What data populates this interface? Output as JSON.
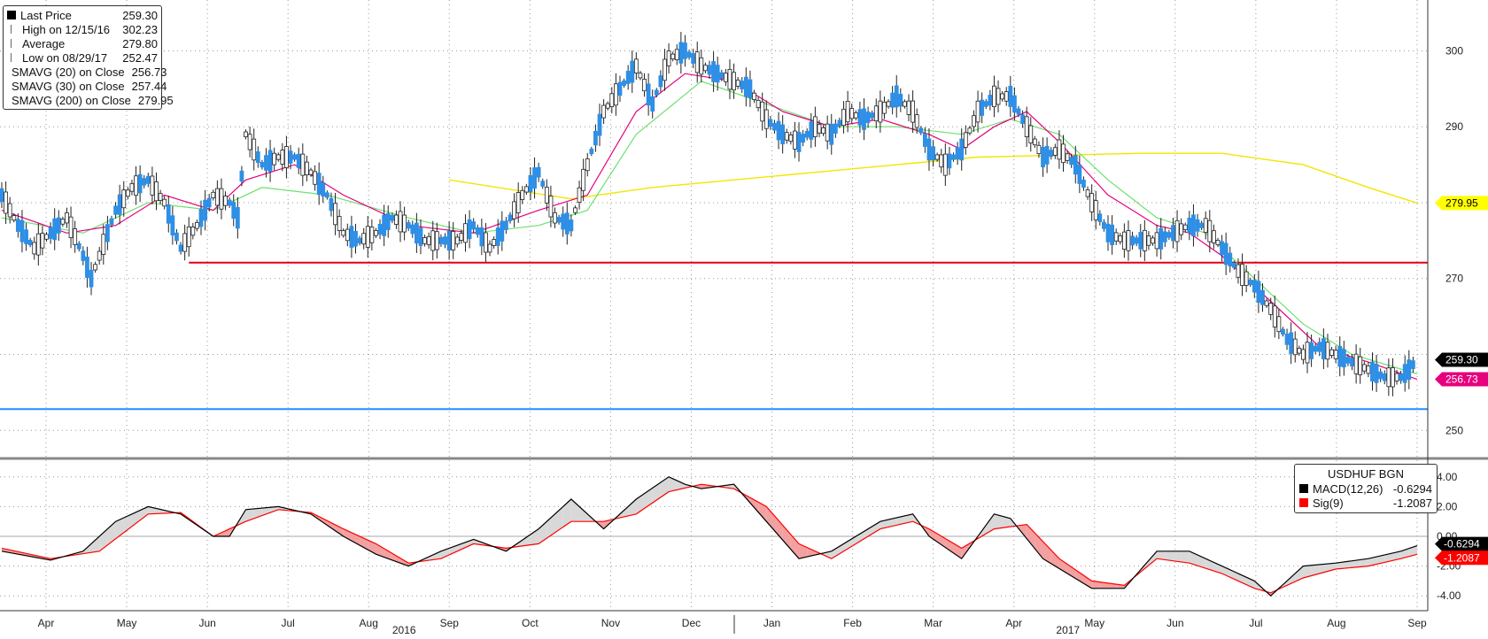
{
  "chart_data": [
    {
      "type": "line",
      "title": "",
      "ylim": [
        247,
        306
      ],
      "yticks": [
        250,
        270,
        290,
        300
      ],
      "grid": true,
      "legend_position": "top-left",
      "legend": [
        {
          "label": "Last Price",
          "value": "259.30",
          "color": "#000000"
        },
        {
          "label": "High on 12/15/16",
          "value": "302.23",
          "color": "#666666"
        },
        {
          "label": "Average",
          "value": "279.80",
          "color": "#666666"
        },
        {
          "label": "Low on 08/29/17",
          "value": "252.47",
          "color": "#666666"
        },
        {
          "label": "SMAVG (20) on Close",
          "value": "256.73",
          "color": "#e6007e"
        },
        {
          "label": "SMAVG (30) on Close",
          "value": "257.44",
          "color": "#7ee87e"
        },
        {
          "label": "SMAVG (200) on Close",
          "value": "279.95",
          "color": "#ffff00"
        }
      ],
      "x_months": [
        "Apr",
        "May",
        "Jun",
        "Jul",
        "Aug",
        "Sep",
        "Oct",
        "Nov",
        "Dec",
        "Jan",
        "Feb",
        "Mar",
        "Apr",
        "May",
        "Jun",
        "Jul",
        "Aug",
        "Sep"
      ],
      "x_years": [
        "2016",
        "2017"
      ],
      "price_series": [
        [
          0,
          281
        ],
        [
          2,
          277
        ],
        [
          4,
          274
        ],
        [
          6,
          276
        ],
        [
          8,
          278
        ],
        [
          10,
          273
        ],
        [
          11,
          270
        ],
        [
          12,
          273
        ],
        [
          14,
          279
        ],
        [
          16,
          282
        ],
        [
          18,
          283
        ],
        [
          20,
          280
        ],
        [
          22,
          274
        ],
        [
          24,
          277
        ],
        [
          26,
          281
        ],
        [
          28,
          280
        ],
        [
          29,
          278
        ],
        [
          30,
          289
        ],
        [
          32,
          285
        ],
        [
          34,
          286
        ],
        [
          36,
          286
        ],
        [
          38,
          284
        ],
        [
          40,
          281
        ],
        [
          42,
          276
        ],
        [
          44,
          275
        ],
        [
          46,
          276
        ],
        [
          48,
          278
        ],
        [
          50,
          277
        ],
        [
          52,
          275
        ],
        [
          54,
          275
        ],
        [
          56,
          275
        ],
        [
          58,
          277
        ],
        [
          60,
          274
        ],
        [
          62,
          277
        ],
        [
          64,
          281
        ],
        [
          66,
          284
        ],
        [
          68,
          278
        ],
        [
          70,
          277
        ],
        [
          72,
          285
        ],
        [
          74,
          292
        ],
        [
          76,
          295
        ],
        [
          78,
          298
        ],
        [
          80,
          293
        ],
        [
          82,
          299
        ],
        [
          84,
          300
        ],
        [
          86,
          298
        ],
        [
          88,
          297
        ],
        [
          90,
          296
        ],
        [
          92,
          295
        ],
        [
          94,
          291
        ],
        [
          96,
          289
        ],
        [
          98,
          288
        ],
        [
          100,
          290
        ],
        [
          102,
          289
        ],
        [
          104,
          292
        ],
        [
          106,
          291
        ],
        [
          108,
          292
        ],
        [
          110,
          294
        ],
        [
          112,
          292
        ],
        [
          114,
          287
        ],
        [
          116,
          285
        ],
        [
          118,
          287
        ],
        [
          120,
          292
        ],
        [
          122,
          294
        ],
        [
          124,
          294
        ],
        [
          126,
          290
        ],
        [
          128,
          286
        ],
        [
          130,
          287
        ],
        [
          132,
          285
        ],
        [
          134,
          280
        ],
        [
          136,
          276
        ],
        [
          138,
          275
        ],
        [
          140,
          275
        ],
        [
          142,
          275
        ],
        [
          144,
          276
        ],
        [
          146,
          277
        ],
        [
          148,
          277
        ],
        [
          150,
          274
        ],
        [
          152,
          271
        ],
        [
          154,
          269
        ],
        [
          156,
          266
        ],
        [
          158,
          262
        ],
        [
          160,
          260
        ],
        [
          162,
          261
        ],
        [
          164,
          260
        ],
        [
          166,
          259
        ],
        [
          168,
          258
        ],
        [
          170,
          257
        ],
        [
          172,
          257
        ],
        [
          173,
          258
        ],
        [
          174,
          259.3
        ]
      ],
      "sma20": [
        [
          0,
          279
        ],
        [
          8,
          276
        ],
        [
          14,
          277
        ],
        [
          20,
          281
        ],
        [
          26,
          279
        ],
        [
          30,
          283
        ],
        [
          36,
          285
        ],
        [
          42,
          281
        ],
        [
          50,
          277
        ],
        [
          58,
          276
        ],
        [
          66,
          279
        ],
        [
          72,
          281
        ],
        [
          78,
          292
        ],
        [
          84,
          297
        ],
        [
          90,
          296
        ],
        [
          96,
          292
        ],
        [
          102,
          290
        ],
        [
          108,
          291
        ],
        [
          114,
          289
        ],
        [
          118,
          287
        ],
        [
          122,
          290
        ],
        [
          126,
          292
        ],
        [
          130,
          288
        ],
        [
          136,
          281
        ],
        [
          142,
          277
        ],
        [
          146,
          276
        ],
        [
          150,
          273
        ],
        [
          156,
          267
        ],
        [
          162,
          261
        ],
        [
          168,
          259
        ],
        [
          174,
          256.73
        ]
      ],
      "sma30": [
        [
          0,
          278
        ],
        [
          10,
          276
        ],
        [
          18,
          280
        ],
        [
          26,
          279
        ],
        [
          32,
          282
        ],
        [
          40,
          281
        ],
        [
          50,
          278
        ],
        [
          58,
          276
        ],
        [
          66,
          277
        ],
        [
          72,
          279
        ],
        [
          78,
          289
        ],
        [
          86,
          296
        ],
        [
          94,
          293
        ],
        [
          102,
          290
        ],
        [
          110,
          290
        ],
        [
          118,
          289
        ],
        [
          124,
          291
        ],
        [
          130,
          289
        ],
        [
          136,
          283
        ],
        [
          142,
          278
        ],
        [
          148,
          276
        ],
        [
          154,
          270
        ],
        [
          160,
          264
        ],
        [
          166,
          260
        ],
        [
          174,
          257.44
        ]
      ],
      "sma200": [
        [
          55,
          283
        ],
        [
          70,
          280.5
        ],
        [
          80,
          282
        ],
        [
          100,
          284
        ],
        [
          120,
          286
        ],
        [
          140,
          286.5
        ],
        [
          150,
          286.5
        ],
        [
          160,
          285
        ],
        [
          168,
          282
        ],
        [
          174,
          279.95
        ]
      ],
      "support_line_red": {
        "value": 272.1,
        "label": ""
      },
      "support_line_blue": {
        "value": 252.8,
        "label": ""
      },
      "right_labels": [
        {
          "value": "279.95",
          "level": 279.95,
          "color": "#ffff00"
        },
        {
          "value": "259.30",
          "level": 259.3,
          "color": "#000000"
        },
        {
          "value": "256.73",
          "level": 256.73,
          "color": "#e6007e"
        }
      ]
    },
    {
      "type": "line",
      "title": "USDHUF BGN",
      "ylim": [
        -5.0,
        5.0
      ],
      "yticks": [
        "4.00",
        "2.00",
        "0.00",
        "-2.00",
        "-4.00"
      ],
      "legend_position": "top-right",
      "legend": [
        {
          "label": "MACD(12,26)",
          "value": "-0.6294",
          "color": "#000000"
        },
        {
          "label": "Sig(9)",
          "value": "-1.2087",
          "color": "#ff0000"
        }
      ],
      "macd": [
        [
          0,
          -1
        ],
        [
          6,
          -1.6
        ],
        [
          10,
          -1
        ],
        [
          14,
          1
        ],
        [
          18,
          2
        ],
        [
          22,
          1.5
        ],
        [
          26,
          0
        ],
        [
          28,
          0
        ],
        [
          30,
          1.8
        ],
        [
          34,
          2
        ],
        [
          38,
          1.5
        ],
        [
          42,
          0
        ],
        [
          46,
          -1.2
        ],
        [
          50,
          -2
        ],
        [
          54,
          -1
        ],
        [
          58,
          -0.2
        ],
        [
          62,
          -1
        ],
        [
          66,
          0.5
        ],
        [
          70,
          2.5
        ],
        [
          74,
          0.5
        ],
        [
          78,
          2.5
        ],
        [
          82,
          4
        ],
        [
          84,
          3.5
        ],
        [
          86,
          3.2
        ],
        [
          90,
          3.5
        ],
        [
          94,
          1
        ],
        [
          98,
          -1.5
        ],
        [
          102,
          -1
        ],
        [
          108,
          1
        ],
        [
          112,
          1.5
        ],
        [
          114,
          0
        ],
        [
          118,
          -1.5
        ],
        [
          122,
          1.5
        ],
        [
          124,
          1.2
        ],
        [
          128,
          -1.5
        ],
        [
          134,
          -3.5
        ],
        [
          138,
          -3.5
        ],
        [
          142,
          -1
        ],
        [
          146,
          -1
        ],
        [
          150,
          -2
        ],
        [
          154,
          -3
        ],
        [
          156,
          -4
        ],
        [
          160,
          -2
        ],
        [
          164,
          -1.8
        ],
        [
          168,
          -1.5
        ],
        [
          172,
          -1
        ],
        [
          174,
          -0.6294
        ]
      ],
      "signal": [
        [
          0,
          -0.8
        ],
        [
          6,
          -1.5
        ],
        [
          12,
          -1
        ],
        [
          18,
          1.5
        ],
        [
          22,
          1.6
        ],
        [
          26,
          0
        ],
        [
          30,
          1
        ],
        [
          34,
          1.8
        ],
        [
          38,
          1.6
        ],
        [
          42,
          0.5
        ],
        [
          46,
          -0.5
        ],
        [
          50,
          -1.8
        ],
        [
          54,
          -1.5
        ],
        [
          58,
          -0.5
        ],
        [
          62,
          -0.8
        ],
        [
          66,
          -0.5
        ],
        [
          70,
          1
        ],
        [
          74,
          1
        ],
        [
          78,
          1.5
        ],
        [
          82,
          3
        ],
        [
          86,
          3.5
        ],
        [
          90,
          3.2
        ],
        [
          94,
          2
        ],
        [
          98,
          -0.5
        ],
        [
          102,
          -1.5
        ],
        [
          108,
          0.5
        ],
        [
          112,
          1
        ],
        [
          114,
          0.5
        ],
        [
          118,
          -0.8
        ],
        [
          122,
          0.5
        ],
        [
          126,
          0.8
        ],
        [
          130,
          -1.5
        ],
        [
          134,
          -3
        ],
        [
          138,
          -3.3
        ],
        [
          142,
          -1.5
        ],
        [
          146,
          -1.8
        ],
        [
          150,
          -2.5
        ],
        [
          154,
          -3.5
        ],
        [
          156,
          -3.8
        ],
        [
          160,
          -2.8
        ],
        [
          164,
          -2.2
        ],
        [
          168,
          -2
        ],
        [
          172,
          -1.5
        ],
        [
          174,
          -1.2087
        ]
      ],
      "right_labels": [
        {
          "value": "-0.6294",
          "level": -0.6294,
          "color": "#000000"
        },
        {
          "value": "-1.2087",
          "level": -1.2087,
          "color": "#ff0000"
        }
      ]
    }
  ]
}
